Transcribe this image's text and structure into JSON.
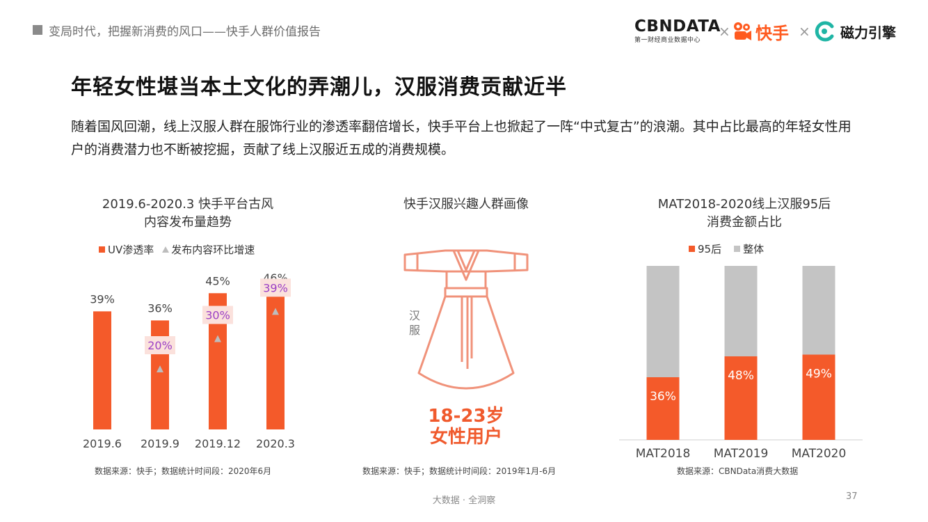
{
  "header": {
    "deck_title": "变局时代，把握新消费的风口——快手人群价值报告",
    "logos": {
      "cbndata": "CBNDATA",
      "cbndata_sub": "第一财经商业数据中心",
      "separator": "×",
      "kuaishou": "快手",
      "cili": "磁力引擎"
    }
  },
  "slide": {
    "title": "年轻女性堪当本土文化的弄潮儿，汉服消费贡献近半",
    "body": "随着国风回潮，线上汉服人群在服饰行业的渗透率翻倍增长，快手平台上也掀起了一阵“中式复古”的浪潮。其中占比最高的年轻女性用户的消费潜力也不断被挖掘，贡献了线上汉服近五成的消费规模。"
  },
  "portrait": {
    "title": "快手汉服兴趣人群画像",
    "hanfu_char1": "汉",
    "hanfu_char2": "服",
    "age": "18-23岁",
    "label": "女性用户",
    "source": "数据来源：快手；数据统计时间段：2019年1月-6月",
    "accent_color": "#f05a2d",
    "outline_color": "#f0927a"
  },
  "chart_data": [
    {
      "type": "bar",
      "title_line1": "2019.6-2020.3 快手平台古风",
      "title_line2": "内容发布量趋势",
      "categories": [
        "2019.6",
        "2019.9",
        "2019.12",
        "2020.3"
      ],
      "series": [
        {
          "name": "UV渗透率",
          "values": [
            39,
            36,
            45,
            46
          ],
          "labels": [
            "39%",
            "36%",
            "45%",
            "46%"
          ],
          "color": "#f45a2a"
        },
        {
          "name": "发布内容环比增速",
          "values": [
            null,
            20,
            30,
            39
          ],
          "labels": [
            "",
            "20%",
            "30%",
            "39%"
          ],
          "color": "#bdbdbd",
          "marker": "triangle"
        }
      ],
      "source": "数据来源：快手；数据统计时间段：2020年6月"
    },
    {
      "type": "bar",
      "stacked": true,
      "title_line1": "MAT2018-2020线上汉服95后",
      "title_line2": "消费金额占比",
      "categories": [
        "MAT2018",
        "MAT2019",
        "MAT2020"
      ],
      "series": [
        {
          "name": "95后",
          "values": [
            36,
            48,
            49
          ],
          "labels": [
            "36%",
            "48%",
            "49%"
          ],
          "color": "#f45a2a"
        },
        {
          "name": "整体",
          "values": [
            64,
            52,
            51
          ],
          "color": "#c4c4c4"
        }
      ],
      "ylim": [
        0,
        100
      ],
      "source": "数据来源：CBNData消费大数据"
    }
  ],
  "footer": {
    "center": "大数据 · 全洞察",
    "page": "37"
  }
}
